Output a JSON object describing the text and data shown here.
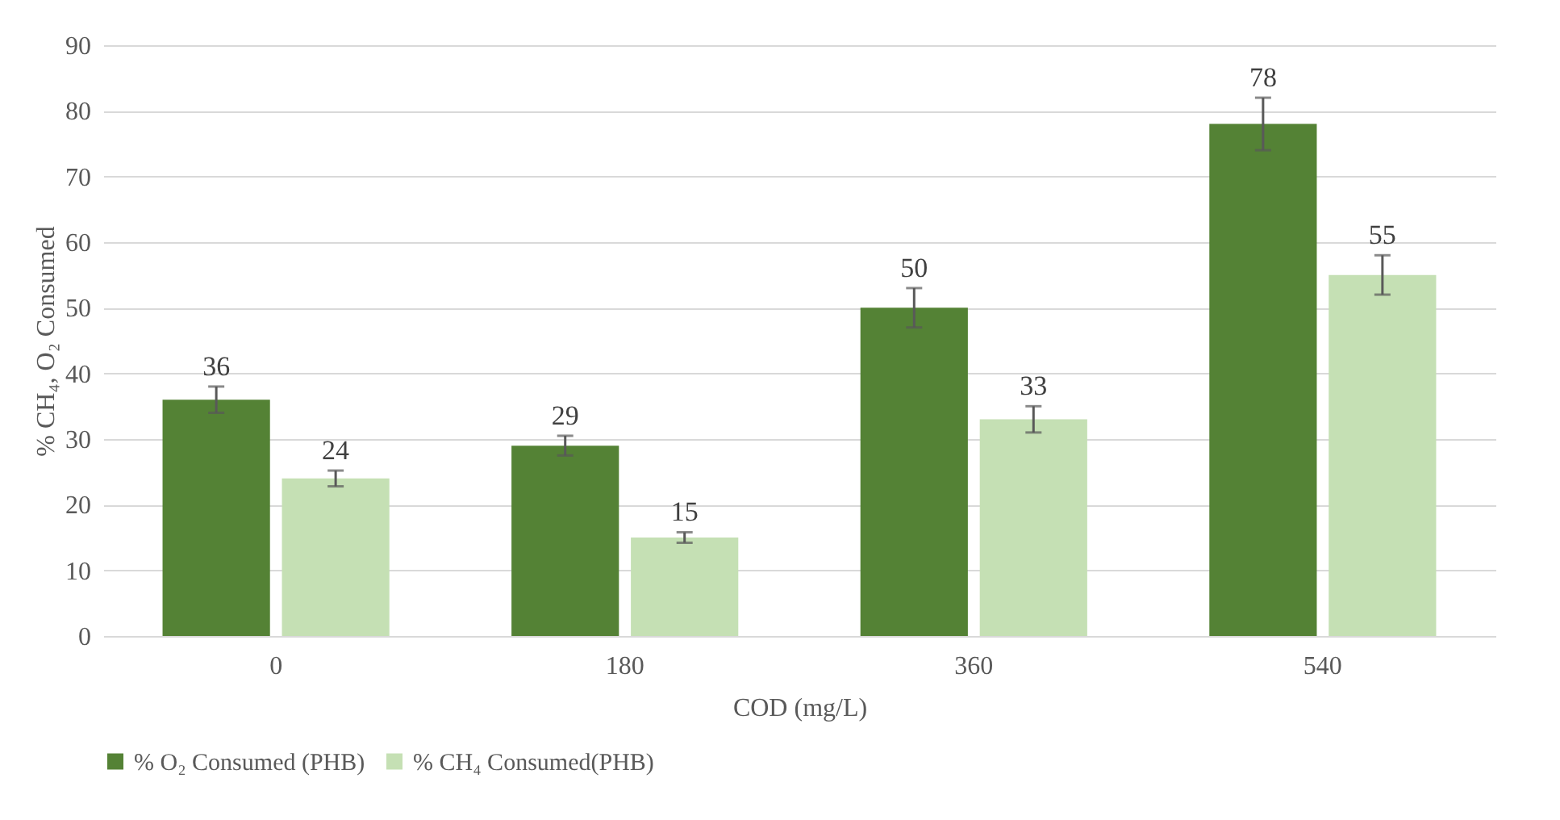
{
  "chart_data": {
    "type": "bar",
    "xlabel": "COD (mg/L)",
    "ylabel": "%  CH₄, O₂ Consumed",
    "categories": [
      "0",
      "180",
      "360",
      "540"
    ],
    "series": [
      {
        "name": "% O₂ Consumed (PHB)",
        "color": "#548235",
        "values": [
          36,
          29,
          50,
          78
        ],
        "errors": [
          2,
          1.5,
          3,
          4
        ]
      },
      {
        "name": "% CH₄ Consumed(PHB)",
        "color": "#c5e0b4",
        "values": [
          24,
          15,
          33,
          55
        ],
        "errors": [
          1.2,
          0.8,
          2,
          3
        ]
      }
    ],
    "ylim": [
      0,
      90
    ],
    "yticks": [
      0,
      10,
      20,
      30,
      40,
      50,
      60,
      70,
      80,
      90
    ],
    "grid": "y",
    "legend": "bottom",
    "data_labels": true
  }
}
